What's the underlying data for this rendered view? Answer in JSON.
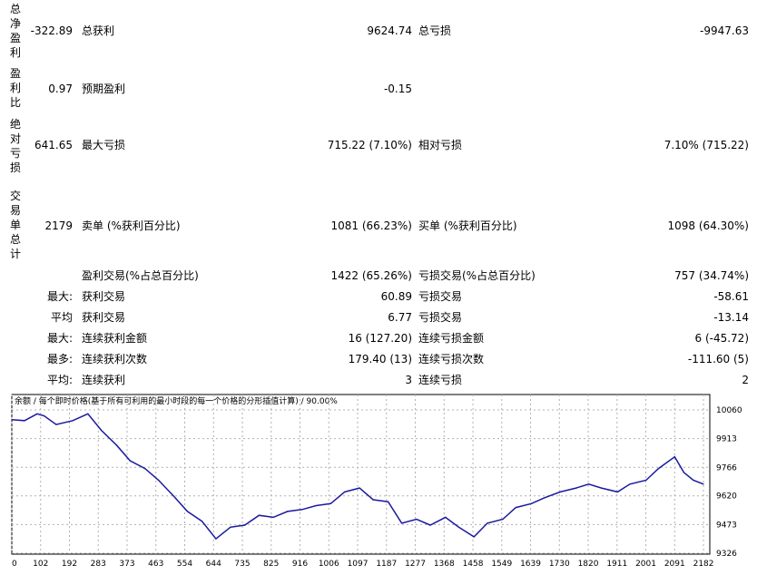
{
  "report": {
    "row1": {
      "side_label": "总净盈利",
      "value": "-322.89",
      "label1": "总获利",
      "value1": "9624.74",
      "label2": "总亏损",
      "value2": "-9947.63"
    },
    "row2": {
      "side_label": "盈利比",
      "value": "0.97",
      "label1": "预期盈利",
      "value1": "-0.15"
    },
    "row3": {
      "side_label": "绝对亏损",
      "value": "641.65",
      "label1": "最大亏损",
      "value1": "715.22 (7.10%)",
      "label2": "相对亏损",
      "value2": "7.10% (715.22)"
    },
    "row4": {
      "side_label": "交易单总计",
      "value": "2179",
      "label1": "卖单 (%获利百分比)",
      "value1": "1081 (66.23%)",
      "label2": "买单 (%获利百分比)",
      "value2": "1098 (64.30%)"
    },
    "row5": {
      "label1": "盈利交易(%占总百分比)",
      "value1": "1422 (65.26%)",
      "label2": "亏损交易(%占总百分比)",
      "value2": "757 (34.74%)"
    },
    "row6": {
      "prefix": "最大:",
      "label1": "获利交易",
      "value1": "60.89",
      "label2": "亏损交易",
      "value2": "-58.61"
    },
    "row7": {
      "prefix": "平均",
      "label1": "获利交易",
      "value1": "6.77",
      "label2": "亏损交易",
      "value2": "-13.14"
    },
    "row8": {
      "prefix": "最大:",
      "label1": "连续获利金额",
      "value1": "16 (127.20)",
      "label2": "连续亏损金额",
      "value2": "6 (-45.72)"
    },
    "row9": {
      "prefix": "最多:",
      "label1": "连续获利次数",
      "value1": "179.40 (13)",
      "label2": "连续亏损次数",
      "value2": "-111.60 (5)"
    },
    "row10": {
      "prefix": "平均:",
      "label1": "连续获利",
      "value1": "3",
      "label2": "连续亏损",
      "value2": "2"
    }
  },
  "chart_data": {
    "type": "line",
    "title": "余额 / 每个即时价格(基于所有可利用的最小时段的每一个价格的分形插值计算) / 90.00%",
    "x_ticks": [
      "0",
      "102",
      "192",
      "283",
      "373",
      "463",
      "554",
      "644",
      "735",
      "825",
      "916",
      "1006",
      "1097",
      "1187",
      "1277",
      "1368",
      "1458",
      "1549",
      "1639",
      "1730",
      "1820",
      "1911",
      "2001",
      "2091",
      "2182"
    ],
    "y_ticks": [
      "10060",
      "9913",
      "9766",
      "9620",
      "9473",
      "9326"
    ],
    "ylim": [
      9326,
      10060
    ],
    "xlim": [
      0,
      2179
    ],
    "grid": true,
    "line_color": "#1a1aa0",
    "series": [
      {
        "x": [
          0,
          40,
          80,
          102,
          140,
          192,
          240,
          283,
          330,
          373,
          420,
          463,
          510,
          554,
          600,
          644,
          690,
          735,
          780,
          825,
          870,
          916,
          960,
          1006,
          1050,
          1097,
          1140,
          1187,
          1230,
          1277,
          1320,
          1368,
          1410,
          1458,
          1500,
          1549,
          1590,
          1639,
          1680,
          1730,
          1780,
          1820,
          1860,
          1911,
          1950,
          2001,
          2040,
          2091,
          2120,
          2150,
          2182
        ],
        "values": [
          10010,
          10005,
          10040,
          10030,
          9985,
          10005,
          10040,
          9955,
          9880,
          9800,
          9760,
          9700,
          9620,
          9540,
          9490,
          9400,
          9460,
          9470,
          9520,
          9510,
          9540,
          9550,
          9570,
          9580,
          9640,
          9660,
          9600,
          9590,
          9480,
          9500,
          9470,
          9510,
          9460,
          9410,
          9480,
          9500,
          9560,
          9580,
          9610,
          9640,
          9660,
          9680,
          9660,
          9640,
          9680,
          9700,
          9760,
          9820,
          9740,
          9700,
          9680
        ]
      }
    ]
  }
}
